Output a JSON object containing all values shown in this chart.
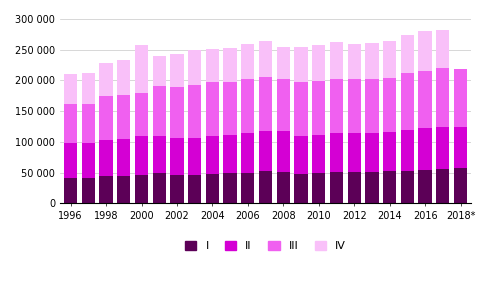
{
  "years": [
    1996,
    1997,
    1998,
    1999,
    2000,
    2001,
    2002,
    2003,
    2004,
    2005,
    2006,
    2007,
    2008,
    2009,
    2010,
    2011,
    2012,
    2013,
    2014,
    2015,
    2016,
    2017,
    2018
  ],
  "Q1": [
    42000,
    41000,
    44000,
    44000,
    47000,
    49000,
    47000,
    47000,
    48000,
    49000,
    50000,
    52000,
    51000,
    48000,
    49000,
    51000,
    51000,
    51000,
    52000,
    53000,
    54000,
    56000,
    58000
  ],
  "Q2": [
    57000,
    57000,
    59000,
    60000,
    62000,
    60000,
    59000,
    60000,
    62000,
    63000,
    64000,
    65000,
    66000,
    62000,
    62000,
    64000,
    64000,
    63000,
    64000,
    67000,
    69000,
    69000,
    67000
  ],
  "Q3": [
    62000,
    63000,
    72000,
    72000,
    70000,
    82000,
    83000,
    85000,
    88000,
    86000,
    88000,
    88000,
    86000,
    87000,
    88000,
    88000,
    88000,
    88000,
    88000,
    92000,
    93000,
    95000,
    93000
  ],
  "Q4": [
    49000,
    51000,
    53000,
    58000,
    78000,
    49000,
    54000,
    58000,
    53000,
    55000,
    58000,
    59000,
    52000,
    57000,
    59000,
    60000,
    57000,
    59000,
    60000,
    62000,
    64000,
    62000,
    0
  ],
  "colors": [
    "#5c0057",
    "#d400d4",
    "#f060f0",
    "#f9c0f9"
  ],
  "ylim": [
    0,
    300000
  ],
  "yticks": [
    0,
    50000,
    100000,
    150000,
    200000,
    250000,
    300000
  ],
  "ytick_labels": [
    "0",
    "50 000",
    "100 000",
    "150 000",
    "200 000",
    "250 000",
    "300 000"
  ],
  "legend_labels": [
    "I",
    "II",
    "III",
    "IV"
  ],
  "bar_width": 0.75,
  "background_color": "#ffffff",
  "grid_color": "#c8c8c8",
  "xtick_labels": [
    "1996",
    "1998",
    "2000",
    "2002",
    "2004",
    "2006",
    "2008",
    "2010",
    "2012",
    "2014",
    "2016",
    "2018*"
  ]
}
